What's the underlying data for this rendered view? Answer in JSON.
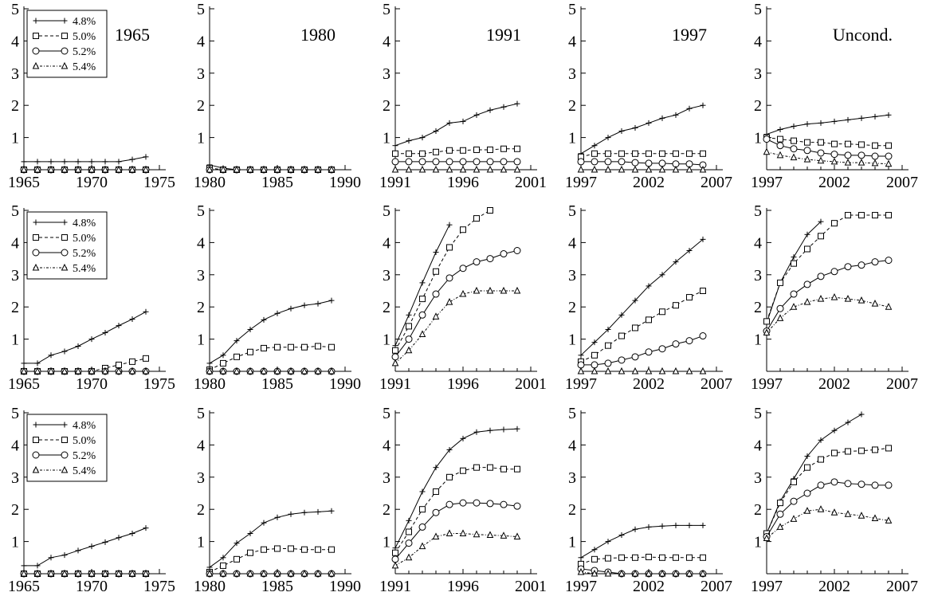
{
  "chart_data": {
    "type": "line",
    "layout": {
      "rows": 3,
      "cols": 5
    },
    "legend": {
      "position": "top-left",
      "entries": [
        {
          "name": "4.8%",
          "marker": "plus",
          "dash": "solid"
        },
        {
          "name": "5.0%",
          "marker": "square",
          "dash": "dashed"
        },
        {
          "name": "5.2%",
          "marker": "circle",
          "dash": "solid"
        },
        {
          "name": "5.4%",
          "marker": "triangle",
          "dash": "dashdot"
        }
      ]
    },
    "series_names": [
      "4.8%",
      "5.0%",
      "5.2%",
      "5.4%"
    ],
    "grid": false,
    "ylim": [
      0,
      5
    ],
    "yticks": [
      1,
      2,
      3,
      4,
      5
    ],
    "panels": [
      {
        "row": 0,
        "col": 0,
        "title": "1965",
        "xlim": [
          1965,
          1975
        ],
        "xticks": [
          1965,
          1970,
          1975
        ],
        "x_start": 1965,
        "n": 10,
        "legend": true,
        "series": [
          [
            0.25,
            0.25,
            0.25,
            0.25,
            0.25,
            0.25,
            0.25,
            0.25,
            0.32,
            0.4
          ],
          [
            0,
            0,
            0,
            0,
            0,
            0,
            0,
            0,
            0,
            0
          ],
          [
            0,
            0,
            0,
            0,
            0,
            0,
            0,
            0,
            0,
            0
          ],
          [
            0,
            0,
            0,
            0,
            0,
            0,
            0,
            0,
            0,
            0
          ]
        ]
      },
      {
        "row": 0,
        "col": 1,
        "title": "1980",
        "xlim": [
          1980,
          1990
        ],
        "xticks": [
          1980,
          1985,
          1990
        ],
        "x_start": 1980,
        "n": 10,
        "legend": false,
        "series": [
          [
            0.15,
            0.05,
            0,
            0,
            0,
            0,
            0,
            0,
            0,
            0
          ],
          [
            0.05,
            0,
            0,
            0,
            0,
            0,
            0,
            0,
            0,
            0
          ],
          [
            0,
            0,
            0,
            0,
            0,
            0,
            0,
            0,
            0,
            0
          ],
          [
            0,
            0,
            0,
            0,
            0,
            0,
            0,
            0,
            0,
            0
          ]
        ]
      },
      {
        "row": 0,
        "col": 2,
        "title": "1991",
        "xlim": [
          1991,
          2001
        ],
        "xticks": [
          1991,
          1996,
          2001
        ],
        "x_start": 1991,
        "n": 10,
        "legend": false,
        "series": [
          [
            0.75,
            0.9,
            1.0,
            1.2,
            1.45,
            1.5,
            1.7,
            1.85,
            1.95,
            2.05
          ],
          [
            0.5,
            0.5,
            0.5,
            0.55,
            0.6,
            0.6,
            0.62,
            0.62,
            0.65,
            0.65
          ],
          [
            0.25,
            0.25,
            0.25,
            0.25,
            0.25,
            0.25,
            0.25,
            0.25,
            0.25,
            0.25
          ],
          [
            0,
            0,
            0,
            0,
            0,
            0,
            0,
            0,
            0,
            0
          ]
        ]
      },
      {
        "row": 0,
        "col": 3,
        "title": "1997",
        "xlim": [
          1997,
          2007
        ],
        "xticks": [
          1997,
          2002,
          2007
        ],
        "x_start": 1997,
        "n": 10,
        "legend": false,
        "series": [
          [
            0.5,
            0.75,
            1.0,
            1.2,
            1.3,
            1.45,
            1.6,
            1.7,
            1.9,
            2.0
          ],
          [
            0.4,
            0.5,
            0.5,
            0.5,
            0.5,
            0.5,
            0.5,
            0.5,
            0.5,
            0.5
          ],
          [
            0.25,
            0.25,
            0.25,
            0.25,
            0.22,
            0.2,
            0.2,
            0.18,
            0.18,
            0.15
          ],
          [
            0,
            0,
            0,
            0,
            0,
            0,
            0,
            0,
            0,
            0
          ]
        ]
      },
      {
        "row": 0,
        "col": 4,
        "title": "Uncond.",
        "xlim": [
          1997,
          2007
        ],
        "xticks": [
          1997,
          2002,
          2007
        ],
        "x_start": 1997,
        "n": 10,
        "legend": false,
        "series": [
          [
            1.1,
            1.25,
            1.35,
            1.42,
            1.45,
            1.5,
            1.55,
            1.6,
            1.65,
            1.7
          ],
          [
            1.0,
            0.95,
            0.9,
            0.85,
            0.85,
            0.8,
            0.8,
            0.78,
            0.75,
            0.75
          ],
          [
            0.95,
            0.75,
            0.65,
            0.6,
            0.52,
            0.48,
            0.45,
            0.45,
            0.42,
            0.42
          ],
          [
            0.55,
            0.45,
            0.38,
            0.32,
            0.28,
            0.25,
            0.22,
            0.22,
            0.2,
            0.18
          ]
        ]
      },
      {
        "row": 1,
        "col": 0,
        "title": "",
        "xlim": [
          1965,
          1975
        ],
        "xticks": [
          1965,
          1970,
          1975
        ],
        "x_start": 1965,
        "n": 10,
        "legend": true,
        "series": [
          [
            0.25,
            0.25,
            0.5,
            0.62,
            0.78,
            1.0,
            1.2,
            1.42,
            1.62,
            1.85
          ],
          [
            0,
            0,
            0,
            0,
            0,
            0,
            0.1,
            0.2,
            0.3,
            0.4
          ],
          [
            0,
            0,
            0,
            0,
            0,
            0,
            0,
            0,
            0,
            0
          ],
          [
            0,
            0,
            0,
            0,
            0,
            0,
            0,
            0,
            0,
            0
          ]
        ]
      },
      {
        "row": 1,
        "col": 1,
        "title": "",
        "xlim": [
          1980,
          1990
        ],
        "xticks": [
          1980,
          1985,
          1990
        ],
        "x_start": 1980,
        "n": 10,
        "legend": false,
        "series": [
          [
            0.25,
            0.5,
            0.95,
            1.3,
            1.6,
            1.8,
            1.95,
            2.05,
            2.1,
            2.2
          ],
          [
            0.05,
            0.25,
            0.45,
            0.6,
            0.72,
            0.75,
            0.75,
            0.75,
            0.78,
            0.75
          ],
          [
            0,
            0,
            0,
            0,
            0,
            0,
            0,
            0,
            0,
            0
          ],
          [
            0,
            0,
            0,
            0,
            0,
            0,
            0,
            0,
            0,
            0
          ]
        ]
      },
      {
        "row": 1,
        "col": 2,
        "title": "",
        "xlim": [
          1991,
          2001
        ],
        "xticks": [
          1991,
          1996,
          2001
        ],
        "x_start": 1991,
        "n": 10,
        "legend": false,
        "series": [
          [
            0.8,
            1.75,
            2.75,
            3.7,
            4.55,
            null,
            null,
            null,
            null,
            null
          ],
          [
            0.65,
            1.4,
            2.25,
            3.1,
            3.85,
            4.4,
            4.75,
            5.0,
            null,
            null
          ],
          [
            0.45,
            1.0,
            1.75,
            2.4,
            2.9,
            3.2,
            3.4,
            3.5,
            3.65,
            3.75
          ],
          [
            0.25,
            0.65,
            1.15,
            1.7,
            2.15,
            2.4,
            2.5,
            2.5,
            2.5,
            2.5
          ]
        ]
      },
      {
        "row": 1,
        "col": 3,
        "title": "",
        "xlim": [
          1997,
          2007
        ],
        "xticks": [
          1997,
          2002,
          2007
        ],
        "x_start": 1997,
        "n": 10,
        "legend": false,
        "series": [
          [
            0.5,
            0.9,
            1.3,
            1.75,
            2.2,
            2.65,
            3.0,
            3.4,
            3.75,
            4.1
          ],
          [
            0.3,
            0.5,
            0.8,
            1.1,
            1.35,
            1.6,
            1.85,
            2.05,
            2.3,
            2.5
          ],
          [
            0.2,
            0.2,
            0.25,
            0.35,
            0.45,
            0.6,
            0.7,
            0.85,
            0.95,
            1.1
          ],
          [
            0,
            0,
            0,
            0,
            0,
            0,
            0,
            0,
            0,
            0
          ]
        ]
      },
      {
        "row": 1,
        "col": 4,
        "title": "",
        "xlim": [
          1997,
          2007
        ],
        "xticks": [
          1997,
          2002,
          2007
        ],
        "x_start": 1997,
        "n": 10,
        "legend": false,
        "series": [
          [
            1.5,
            2.75,
            3.55,
            4.25,
            4.65,
            null,
            null,
            null,
            null,
            null
          ],
          [
            1.55,
            2.75,
            3.35,
            3.8,
            4.2,
            4.6,
            4.85,
            4.85,
            4.85,
            4.85
          ],
          [
            1.25,
            1.95,
            2.4,
            2.7,
            2.95,
            3.1,
            3.25,
            3.3,
            3.4,
            3.45
          ],
          [
            1.2,
            1.65,
            2.0,
            2.15,
            2.25,
            2.3,
            2.25,
            2.2,
            2.1,
            2.0
          ]
        ]
      },
      {
        "row": 2,
        "col": 0,
        "title": "",
        "xlim": [
          1965,
          1975
        ],
        "xticks": [
          1965,
          1970,
          1975
        ],
        "x_start": 1965,
        "n": 10,
        "legend": true,
        "series": [
          [
            0.25,
            0.25,
            0.5,
            0.58,
            0.72,
            0.85,
            0.98,
            1.12,
            1.25,
            1.42
          ],
          [
            0,
            0,
            0,
            0,
            0,
            0,
            0,
            0,
            0,
            0
          ],
          [
            0,
            0,
            0,
            0,
            0,
            0,
            0,
            0,
            0,
            0
          ],
          [
            0,
            0,
            0,
            0,
            0,
            0,
            0,
            0,
            0,
            0
          ]
        ]
      },
      {
        "row": 2,
        "col": 1,
        "title": "",
        "xlim": [
          1980,
          1990
        ],
        "xticks": [
          1980,
          1985,
          1990
        ],
        "x_start": 1980,
        "n": 10,
        "legend": false,
        "series": [
          [
            0.2,
            0.5,
            0.95,
            1.25,
            1.58,
            1.75,
            1.85,
            1.9,
            1.92,
            1.95
          ],
          [
            0.05,
            0.25,
            0.45,
            0.65,
            0.75,
            0.78,
            0.78,
            0.75,
            0.75,
            0.75
          ],
          [
            0,
            0,
            0,
            0,
            0,
            0,
            0,
            0,
            0,
            0
          ],
          [
            0,
            0,
            0,
            0,
            0,
            0,
            0,
            0,
            0,
            0
          ]
        ]
      },
      {
        "row": 2,
        "col": 2,
        "title": "",
        "xlim": [
          1991,
          2001
        ],
        "xticks": [
          1991,
          1996,
          2001
        ],
        "x_start": 1991,
        "n": 10,
        "legend": false,
        "series": [
          [
            0.8,
            1.65,
            2.55,
            3.3,
            3.85,
            4.2,
            4.4,
            4.45,
            4.48,
            4.5
          ],
          [
            0.65,
            1.3,
            2.0,
            2.55,
            3.0,
            3.2,
            3.3,
            3.3,
            3.25,
            3.25
          ],
          [
            0.45,
            0.95,
            1.45,
            1.9,
            2.15,
            2.2,
            2.2,
            2.18,
            2.15,
            2.1
          ],
          [
            0.25,
            0.5,
            0.85,
            1.15,
            1.25,
            1.25,
            1.22,
            1.2,
            1.18,
            1.15
          ]
        ]
      },
      {
        "row": 2,
        "col": 3,
        "title": "",
        "xlim": [
          1997,
          2007
        ],
        "xticks": [
          1997,
          2002,
          2007
        ],
        "x_start": 1997,
        "n": 10,
        "legend": false,
        "series": [
          [
            0.5,
            0.75,
            1.0,
            1.2,
            1.38,
            1.45,
            1.48,
            1.5,
            1.5,
            1.5
          ],
          [
            0.3,
            0.45,
            0.48,
            0.5,
            0.5,
            0.52,
            0.5,
            0.5,
            0.5,
            0.5
          ],
          [
            0.15,
            0.1,
            0.05,
            0,
            0,
            0,
            0,
            0,
            0,
            0
          ],
          [
            0.05,
            0,
            0,
            0,
            0,
            0,
            0,
            0,
            0,
            0
          ]
        ]
      },
      {
        "row": 2,
        "col": 4,
        "title": "",
        "xlim": [
          1997,
          2007
        ],
        "xticks": [
          1997,
          2002,
          2007
        ],
        "x_start": 1997,
        "n": 10,
        "legend": false,
        "series": [
          [
            1.25,
            2.25,
            2.95,
            3.65,
            4.15,
            4.45,
            4.7,
            4.95,
            null,
            null
          ],
          [
            1.25,
            2.2,
            2.85,
            3.3,
            3.55,
            3.75,
            3.8,
            3.82,
            3.85,
            3.9
          ],
          [
            1.15,
            1.85,
            2.25,
            2.5,
            2.75,
            2.85,
            2.8,
            2.78,
            2.75,
            2.75
          ],
          [
            1.1,
            1.45,
            1.7,
            1.95,
            2.0,
            1.9,
            1.85,
            1.8,
            1.72,
            1.65
          ]
        ]
      }
    ]
  }
}
